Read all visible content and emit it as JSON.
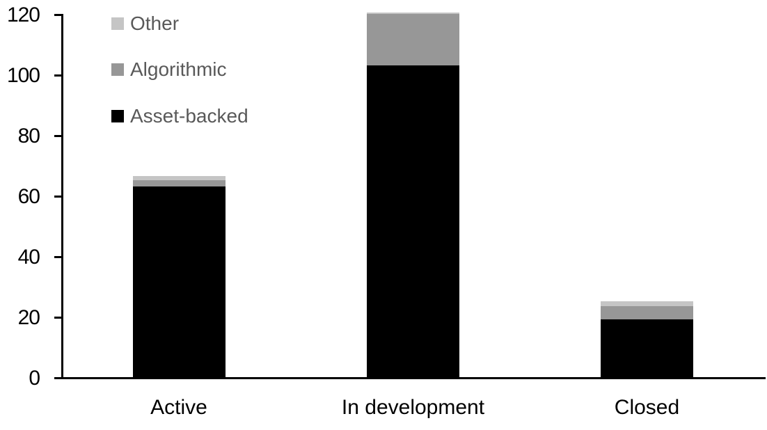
{
  "chart_data": {
    "type": "bar",
    "stacked": true,
    "title": "",
    "xlabel": "",
    "ylabel": "",
    "categories": [
      "Active",
      "In development",
      "Closed"
    ],
    "series": [
      {
        "name": "Asset-backed",
        "color": "#000000",
        "values": [
          63,
          103,
          19
        ]
      },
      {
        "name": "Algorithmic",
        "color": "#979797",
        "values": [
          2,
          17,
          4.5
        ]
      },
      {
        "name": "Other",
        "color": "#c5c5c5",
        "values": [
          1.5,
          0.5,
          1.5
        ]
      }
    ],
    "totals": [
      66.5,
      120.5,
      25
    ],
    "ylim": [
      0,
      120
    ],
    "yticks": [
      0,
      20,
      40,
      60,
      80,
      100,
      120
    ],
    "grid": false,
    "legend": {
      "position": "top-left",
      "order": [
        "Other",
        "Algorithmic",
        "Asset-backed"
      ],
      "text_color": "#595959"
    },
    "axis_color": "#000000",
    "background_color": "#ffffff"
  }
}
